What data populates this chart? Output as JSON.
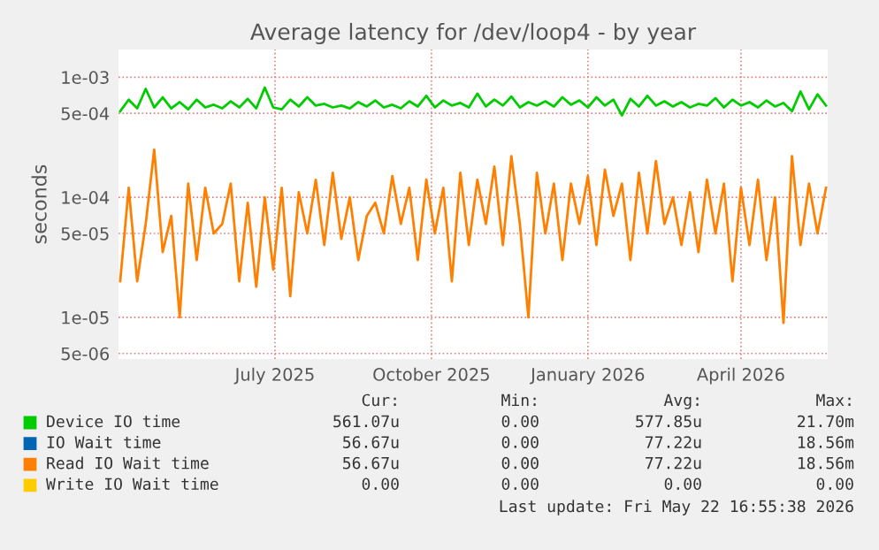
{
  "chart_data": {
    "type": "line",
    "title": "Average latency for /dev/loop4 - by year",
    "ylabel": "seconds",
    "log": "y",
    "x": [
      "2025-04-01",
      "2025-04-06",
      "2025-04-11",
      "2025-04-16",
      "2025-04-21",
      "2025-04-26",
      "2025-05-01",
      "2025-05-06",
      "2025-05-11",
      "2025-05-16",
      "2025-05-21",
      "2025-05-26",
      "2025-05-31",
      "2025-06-05",
      "2025-06-10",
      "2025-06-15",
      "2025-06-20",
      "2025-06-25",
      "2025-06-30",
      "2025-07-05",
      "2025-07-10",
      "2025-07-15",
      "2025-07-20",
      "2025-07-25",
      "2025-07-30",
      "2025-08-04",
      "2025-08-09",
      "2025-08-14",
      "2025-08-19",
      "2025-08-24",
      "2025-08-29",
      "2025-09-03",
      "2025-09-08",
      "2025-09-13",
      "2025-09-18",
      "2025-09-23",
      "2025-09-28",
      "2025-10-03",
      "2025-10-08",
      "2025-10-13",
      "2025-10-18",
      "2025-10-23",
      "2025-10-28",
      "2025-11-02",
      "2025-11-07",
      "2025-11-12",
      "2025-11-17",
      "2025-11-22",
      "2025-11-27",
      "2025-12-02",
      "2025-12-07",
      "2025-12-12",
      "2025-12-17",
      "2025-12-22",
      "2025-12-27",
      "2026-01-01",
      "2026-01-06",
      "2026-01-11",
      "2026-01-16",
      "2026-01-21",
      "2026-01-26",
      "2026-01-31",
      "2026-02-05",
      "2026-02-10",
      "2026-02-15",
      "2026-02-20",
      "2026-02-25",
      "2026-03-02",
      "2026-03-07",
      "2026-03-12",
      "2026-03-17",
      "2026-03-22",
      "2026-03-27",
      "2026-04-01",
      "2026-04-06",
      "2026-04-11",
      "2026-04-16",
      "2026-04-21",
      "2026-04-26",
      "2026-05-01",
      "2026-05-06",
      "2026-05-11",
      "2026-05-16",
      "2026-05-21"
    ],
    "series": [
      {
        "name": "Device IO time",
        "color": "#00cc00",
        "values": [
          0.00052,
          0.00065,
          0.00055,
          0.0008,
          0.00056,
          0.00068,
          0.00055,
          0.00062,
          0.00054,
          0.00065,
          0.00056,
          0.00059,
          0.00055,
          0.00063,
          0.00056,
          0.00066,
          0.00055,
          0.00082,
          0.00056,
          0.00054,
          0.00065,
          0.00057,
          0.00068,
          0.00058,
          0.0006,
          0.00056,
          0.00058,
          0.00055,
          0.00062,
          0.00057,
          0.00064,
          0.00056,
          0.00059,
          0.00055,
          0.00063,
          0.00057,
          0.0007,
          0.00056,
          0.00064,
          0.00058,
          0.00061,
          0.00056,
          0.00073,
          0.00057,
          0.00065,
          0.00058,
          0.00069,
          0.00056,
          0.00062,
          0.00058,
          0.00063,
          0.00057,
          0.00068,
          0.00059,
          0.00064,
          0.00056,
          0.00068,
          0.00058,
          0.00065,
          0.00048,
          0.00066,
          0.00057,
          0.0007,
          0.00058,
          0.00063,
          0.00057,
          0.00062,
          0.00056,
          0.0006,
          0.00058,
          0.00067,
          0.00056,
          0.00065,
          0.00058,
          0.00062,
          0.00056,
          0.00064,
          0.00057,
          0.00061,
          0.00052,
          0.00076,
          0.00054,
          0.00072,
          0.00058
        ]
      },
      {
        "name": "IO Wait time",
        "color": "#0066b3",
        "values": [
          null,
          null,
          null,
          null,
          null,
          null,
          null,
          null,
          null,
          null,
          null,
          null,
          null,
          null,
          null,
          null,
          null,
          null,
          null,
          null,
          null,
          null,
          null,
          null,
          null,
          null,
          null,
          null,
          null,
          null,
          null,
          null,
          null,
          null,
          null,
          null,
          null,
          null,
          null,
          null,
          null,
          null,
          null,
          null,
          null,
          null,
          null,
          null,
          null,
          null,
          null,
          null,
          null,
          null,
          null,
          null,
          null,
          null,
          null,
          null,
          null,
          null,
          null,
          null,
          null,
          null,
          null,
          null,
          null,
          null,
          null,
          null,
          null,
          null,
          null,
          null,
          null,
          null,
          null,
          null,
          null,
          null,
          null,
          null
        ]
      },
      {
        "name": "Read IO Wait time",
        "color": "#ff8000",
        "values": [
          2e-05,
          0.00012,
          2e-05,
          6e-05,
          0.00025,
          3.5e-05,
          7e-05,
          1e-05,
          0.00013,
          3e-05,
          0.00012,
          5e-05,
          6e-05,
          0.00013,
          2e-05,
          9e-05,
          1.8e-05,
          0.0001,
          2.5e-05,
          0.00012,
          1.5e-05,
          0.00011,
          5e-05,
          0.00014,
          4e-05,
          0.00016,
          4.5e-05,
          0.0001,
          3e-05,
          7e-05,
          9e-05,
          5e-05,
          0.00015,
          6e-05,
          0.00012,
          3e-05,
          0.00014,
          5e-05,
          0.00012,
          2e-05,
          0.00016,
          4e-05,
          0.00014,
          6e-05,
          0.00018,
          4e-05,
          0.00022,
          6e-05,
          1e-05,
          0.00016,
          5e-05,
          0.00013,
          3e-05,
          0.00013,
          6e-05,
          0.00015,
          4e-05,
          0.00017,
          7e-05,
          0.00013,
          3e-05,
          0.00016,
          5e-05,
          0.0002,
          6e-05,
          0.0001,
          4e-05,
          0.00011,
          3.5e-05,
          0.00014,
          5e-05,
          0.00013,
          2e-05,
          0.00012,
          4e-05,
          0.00014,
          3e-05,
          0.0001,
          9e-06,
          0.00022,
          4e-05,
          0.00013,
          5e-05,
          0.00012
        ]
      },
      {
        "name": "Write IO Wait time",
        "color": "#ffcc00",
        "values": [
          null,
          null,
          null,
          null,
          null,
          null,
          null,
          null,
          null,
          null,
          null,
          null,
          null,
          null,
          null,
          null,
          null,
          null,
          null,
          null,
          null,
          null,
          null,
          null,
          null,
          null,
          null,
          null,
          null,
          null,
          null,
          null,
          null,
          null,
          null,
          null,
          null,
          null,
          null,
          null,
          null,
          null,
          null,
          null,
          null,
          null,
          null,
          null,
          null,
          null,
          null,
          null,
          null,
          null,
          null,
          null,
          null,
          null,
          null,
          null,
          null,
          null,
          null,
          null,
          null,
          null,
          null,
          null,
          null,
          null,
          null,
          null,
          null,
          null,
          null,
          null,
          null,
          null,
          null,
          null,
          null,
          null,
          null,
          null
        ]
      }
    ],
    "xlim": [
      "2025-03-31",
      "2026-05-22"
    ],
    "xticks": [
      {
        "value": "2025-07-01",
        "label": "July 2025"
      },
      {
        "value": "2025-10-01",
        "label": "October 2025"
      },
      {
        "value": "2026-01-01",
        "label": "January 2026"
      },
      {
        "value": "2026-04-01",
        "label": "April 2026"
      }
    ],
    "ylim": [
      4.5e-06,
      0.0017
    ],
    "yticks": [
      {
        "value": 0.001,
        "label": "1e-03"
      },
      {
        "value": 0.0005,
        "label": "5e-04"
      },
      {
        "value": 0.0001,
        "label": "1e-04"
      },
      {
        "value": 5e-05,
        "label": "5e-05"
      },
      {
        "value": 1e-05,
        "label": "1e-05"
      },
      {
        "value": 5e-06,
        "label": "5e-06"
      }
    ],
    "grid": true,
    "legend": "bottom",
    "annotations": [
      "Cur:",
      "Min:",
      "Avg:",
      "Max:",
      "561.07u",
      "0.00",
      "577.85u",
      "21.70m",
      "56.67u",
      "0.00",
      "77.22u",
      "18.56m",
      "56.67u",
      "0.00",
      "77.22u",
      "18.56m",
      "0.00",
      "0.00",
      "0.00",
      "0.00",
      "Last update: Fri May 22 16:55:38 2026"
    ]
  }
}
